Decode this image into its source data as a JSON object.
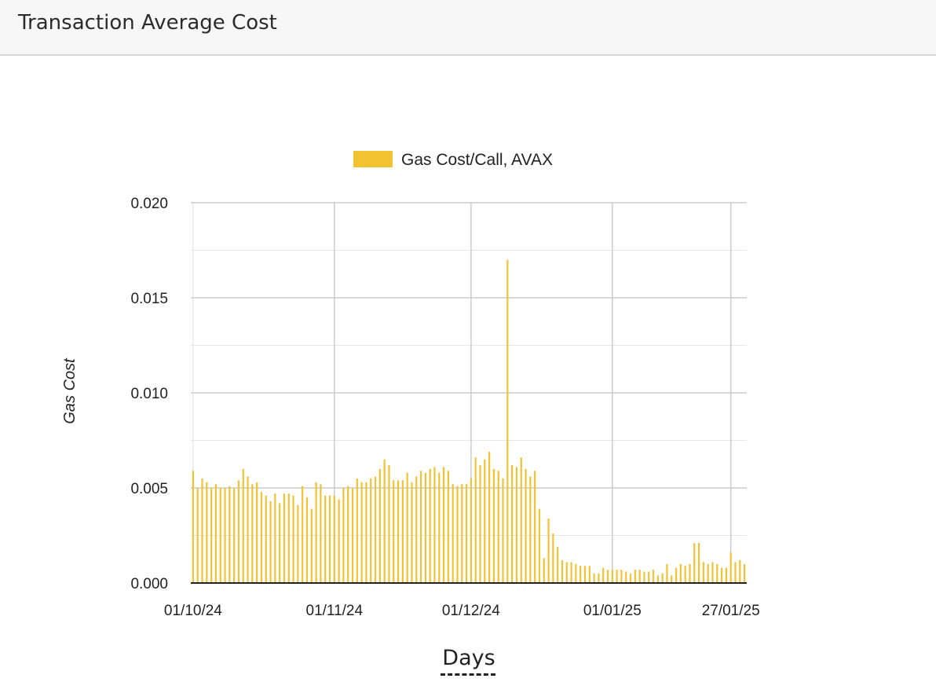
{
  "header": {
    "title": "Transaction Average Cost"
  },
  "colors": {
    "bar": "#f1c232",
    "grid": "#cccccc",
    "axis": "#222222"
  },
  "chart_data": {
    "type": "bar",
    "legend": {
      "label": "Gas Cost/Call, AVAX",
      "position": "top"
    },
    "ylabel": "Gas Cost",
    "xlabel": "Days",
    "ylim": [
      0,
      0.02
    ],
    "yticks": [
      "0.000",
      "0.005",
      "0.010",
      "0.015",
      "0.020"
    ],
    "ytick_values": [
      0,
      0.005,
      0.01,
      0.015,
      0.02
    ],
    "xticks": [
      "01/10/24",
      "01/11/24",
      "01/12/24",
      "01/01/25",
      "27/01/25"
    ],
    "xtick_dates": [
      "2024-10-01",
      "2024-11-01",
      "2024-12-01",
      "2025-01-01",
      "2025-01-27"
    ],
    "x_start": "2024-10-01",
    "grid": true,
    "values": [
      0.0059,
      0.005,
      0.0055,
      0.0053,
      0.005,
      0.0052,
      0.005,
      0.005,
      0.0051,
      0.005,
      0.0054,
      0.006,
      0.0056,
      0.0052,
      0.0053,
      0.0048,
      0.0046,
      0.0043,
      0.0047,
      0.0042,
      0.0047,
      0.0047,
      0.0046,
      0.0041,
      0.0051,
      0.0045,
      0.0039,
      0.0053,
      0.0052,
      0.0046,
      0.0046,
      0.0046,
      0.0044,
      0.005,
      0.0051,
      0.005,
      0.0055,
      0.0053,
      0.0053,
      0.0055,
      0.0056,
      0.006,
      0.0065,
      0.0062,
      0.0054,
      0.0054,
      0.0054,
      0.0058,
      0.0053,
      0.0056,
      0.0059,
      0.0058,
      0.006,
      0.0061,
      0.0058,
      0.0061,
      0.0059,
      0.0052,
      0.0051,
      0.0052,
      0.0052,
      0.0055,
      0.0066,
      0.0062,
      0.0065,
      0.0069,
      0.006,
      0.0059,
      0.0055,
      0.017,
      0.0062,
      0.0061,
      0.0066,
      0.006,
      0.0056,
      0.0059,
      0.0039,
      0.0013,
      0.0034,
      0.0026,
      0.0019,
      0.0012,
      0.0011,
      0.0011,
      0.001,
      0.0009,
      0.0009,
      0.0009,
      0.0005,
      0.0005,
      0.0008,
      0.0007,
      0.0007,
      0.0007,
      0.0007,
      0.0006,
      0.0005,
      0.0007,
      0.0007,
      0.0006,
      0.0006,
      0.0007,
      0.0004,
      0.0005,
      0.001,
      0.0004,
      0.0008,
      0.001,
      0.0009,
      0.001,
      0.0021,
      0.0021,
      0.0011,
      0.001,
      0.0011,
      0.001,
      0.0008,
      0.0008,
      0.0016,
      0.0011,
      0.0012,
      0.001
    ]
  }
}
